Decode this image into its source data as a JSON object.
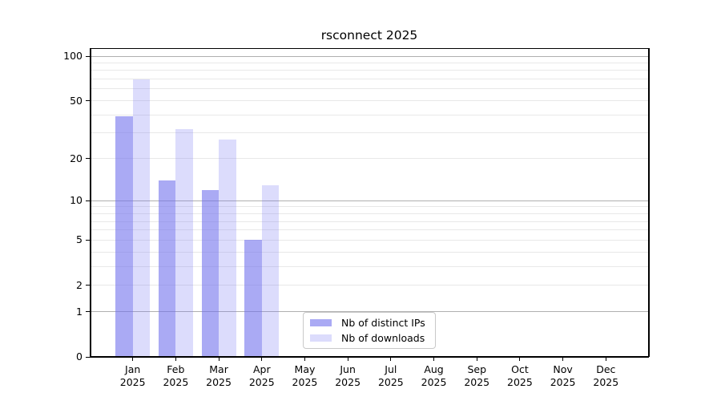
{
  "chart_data": {
    "type": "bar",
    "title": "rsconnect 2025",
    "y_scale": "log1p",
    "x_year": "2025",
    "categories": [
      "Jan",
      "Feb",
      "Mar",
      "Apr",
      "May",
      "Jun",
      "Jul",
      "Aug",
      "Sep",
      "Oct",
      "Nov",
      "Dec"
    ],
    "y_ticks": [
      0,
      1,
      2,
      5,
      10,
      20,
      50,
      100
    ],
    "grid": {
      "major_values": [
        1,
        10,
        100
      ],
      "minor_values": [
        2,
        3,
        4,
        5,
        6,
        7,
        8,
        9,
        20,
        30,
        40,
        50,
        60,
        70,
        80,
        90
      ]
    },
    "series": [
      {
        "name": "Nb of distinct IPs",
        "color": "rgba(113,113,237,0.6)",
        "values": [
          39,
          14,
          12,
          5,
          null,
          null,
          null,
          null,
          null,
          null,
          null,
          null
        ]
      },
      {
        "name": "Nb of downloads",
        "color": "rgba(118,118,245,0.26)",
        "values": [
          70,
          32,
          27,
          13,
          null,
          null,
          null,
          null,
          null,
          null,
          null,
          null
        ]
      }
    ],
    "legend_position": "lower center",
    "colors": {
      "major_grid": "#b0b0b0",
      "minor_grid": "#e8e8e8",
      "spine": "#000000",
      "background": "#ffffff"
    },
    "ylim": [
      0,
      113
    ],
    "xlabel": "",
    "ylabel": ""
  }
}
